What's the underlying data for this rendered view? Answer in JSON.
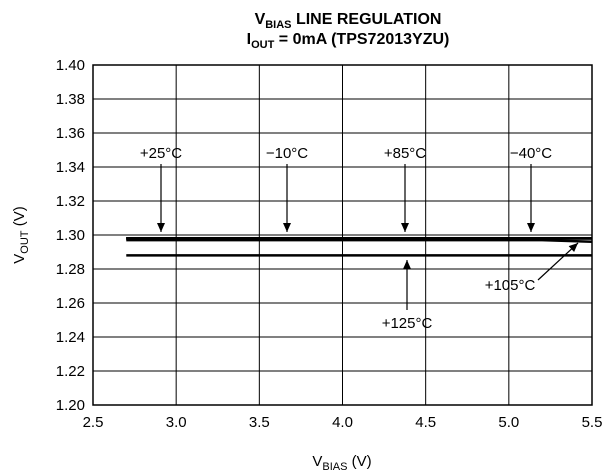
{
  "chart_data": {
    "type": "line",
    "title": {
      "line1": [
        "V",
        "BIAS",
        " LINE REGULATION"
      ],
      "line2": [
        "I",
        "OUT",
        " = 0mA (TPS72013YZU)"
      ]
    },
    "x_label": [
      "V",
      "BIAS",
      " (V)"
    ],
    "y_label": [
      "V",
      "OUT",
      " (V)"
    ],
    "x": [
      2.7,
      3.0,
      3.5,
      4.0,
      4.5,
      5.0,
      5.2,
      5.5
    ],
    "series": [
      {
        "name": "+25°C",
        "color": "#000000",
        "values": [
          1.298,
          1.298,
          1.298,
          1.298,
          1.298,
          1.298,
          1.298,
          1.298
        ]
      },
      {
        "name": "−10°C",
        "color": "#000000",
        "values": [
          1.298,
          1.298,
          1.298,
          1.298,
          1.298,
          1.298,
          1.298,
          1.298
        ]
      },
      {
        "name": "+85°C",
        "color": "#000000",
        "values": [
          1.298,
          1.298,
          1.298,
          1.298,
          1.298,
          1.298,
          1.298,
          1.298
        ]
      },
      {
        "name": "−40°C",
        "color": "#000000",
        "values": [
          1.298,
          1.298,
          1.298,
          1.298,
          1.298,
          1.298,
          1.298,
          1.298
        ]
      },
      {
        "name": "+105°C",
        "color": "#000000",
        "values": [
          1.297,
          1.297,
          1.297,
          1.297,
          1.297,
          1.297,
          1.297,
          1.296
        ]
      },
      {
        "name": "+125°C",
        "color": "#000000",
        "values": [
          1.288,
          1.288,
          1.288,
          1.288,
          1.288,
          1.288,
          1.288,
          1.288
        ]
      }
    ],
    "xlim": [
      2.5,
      5.5
    ],
    "xticks": [
      2.5,
      {
        "value": 3.0,
        "label": "3.0"
      },
      3.5,
      {
        "value": 4.0,
        "label": "4.0"
      },
      4.5,
      {
        "value": 5.0,
        "label": "5.0"
      },
      5.5
    ],
    "ylim": [
      1.2,
      1.4
    ],
    "yticks": [
      {
        "value": 1.2,
        "label": "1.20"
      },
      1.22,
      1.24,
      1.26,
      1.28,
      {
        "value": 1.3,
        "label": "1.30"
      },
      1.32,
      1.34,
      1.36,
      1.38,
      {
        "value": 1.4,
        "label": "1.40"
      }
    ],
    "grid": true
  }
}
